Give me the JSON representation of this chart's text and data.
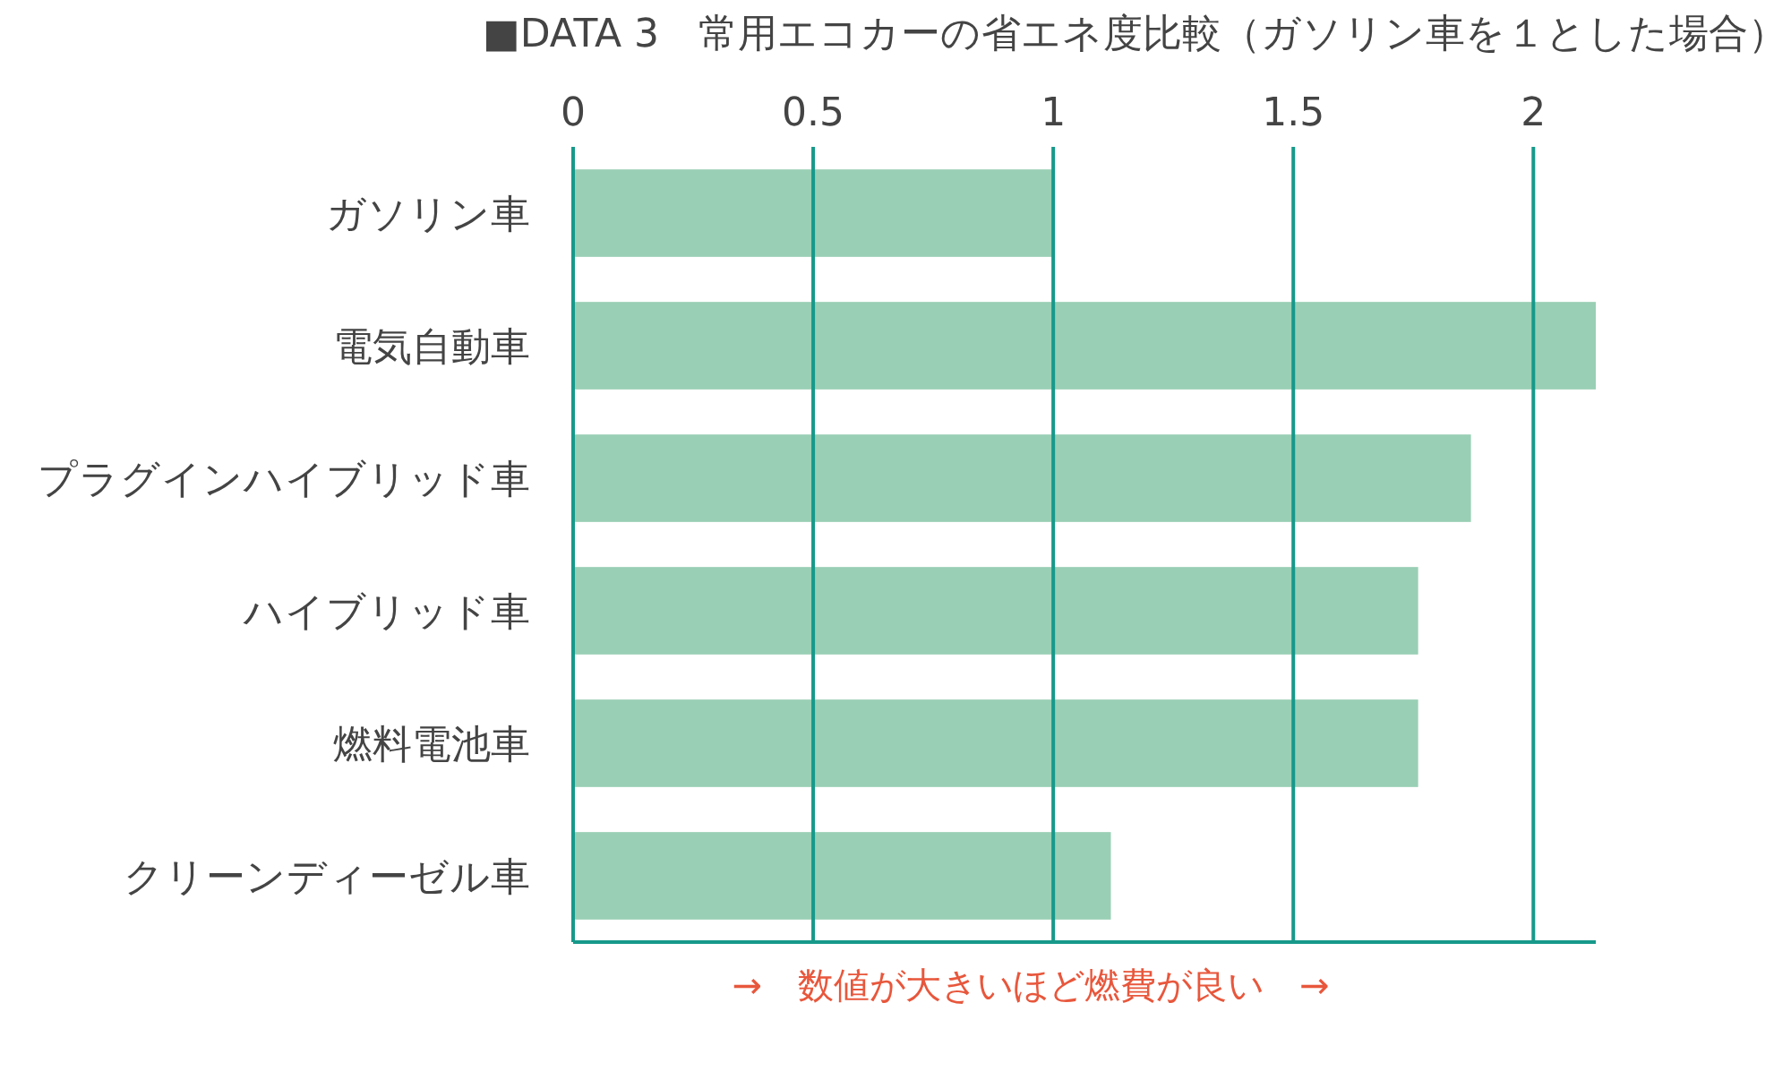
{
  "chart_data": {
    "type": "bar",
    "orientation": "horizontal",
    "title": "■DATA 3　常用エコカーの省エネ度比較（ガソリン車を１とした場合）",
    "categories": [
      "ガソリン車",
      "電気自動車",
      "プラグインハイブリッド車",
      "ハイブリッド車",
      "燃料電池車",
      "クリーンディーゼル車"
    ],
    "values": [
      1,
      2.13,
      1.87,
      1.76,
      1.76,
      1.12
    ],
    "color": "#99cfb5",
    "xlim": [
      0,
      2.13
    ],
    "xticks": [
      0,
      0.5,
      1,
      1.5,
      2
    ],
    "grid": "x",
    "annotations": [
      "→　数値が大きいほど燃費が良い　→"
    ]
  }
}
